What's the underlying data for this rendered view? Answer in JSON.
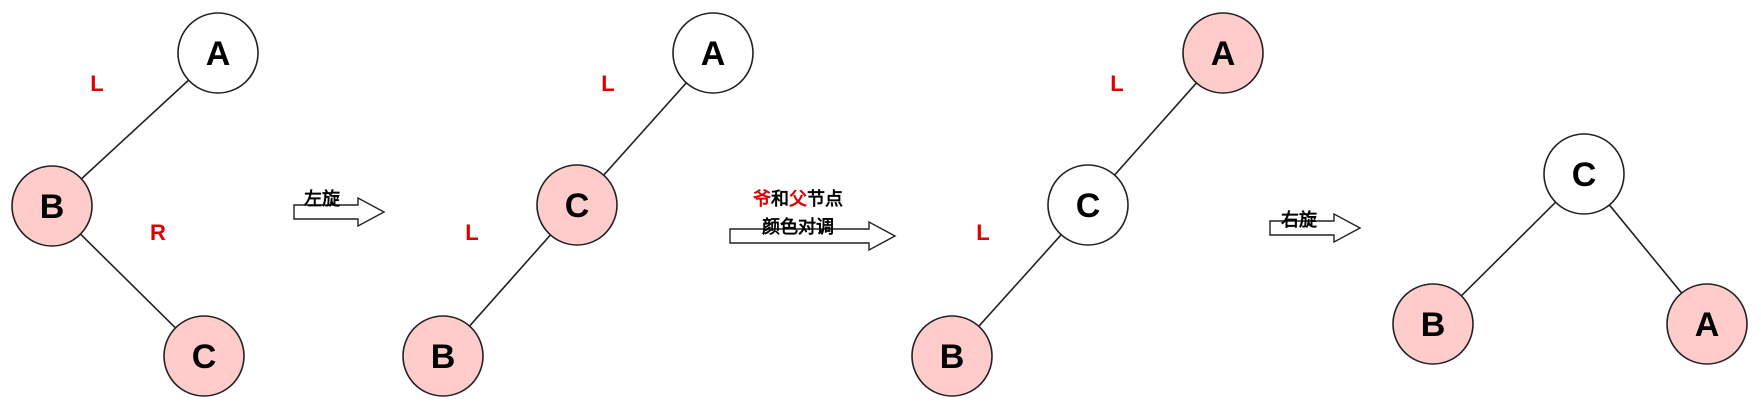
{
  "colors": {
    "red_node": "#ffcccc",
    "black_node": "#ffffff",
    "stroke": "#222222",
    "edge_label": "#e00000"
  },
  "stages": [
    {
      "nodes": [
        {
          "id": "A",
          "label": "A",
          "color": "black"
        },
        {
          "id": "B",
          "label": "B",
          "color": "red"
        },
        {
          "id": "C",
          "label": "C",
          "color": "red"
        }
      ],
      "edges": [
        {
          "from": "A",
          "to": "B",
          "label": "L"
        },
        {
          "from": "B",
          "to": "C",
          "label": "R"
        }
      ]
    },
    {
      "nodes": [
        {
          "id": "A",
          "label": "A",
          "color": "black"
        },
        {
          "id": "C",
          "label": "C",
          "color": "red"
        },
        {
          "id": "B",
          "label": "B",
          "color": "red"
        }
      ],
      "edges": [
        {
          "from": "A",
          "to": "C",
          "label": "L"
        },
        {
          "from": "C",
          "to": "B",
          "label": "L"
        }
      ]
    },
    {
      "nodes": [
        {
          "id": "A",
          "label": "A",
          "color": "red"
        },
        {
          "id": "C",
          "label": "C",
          "color": "black"
        },
        {
          "id": "B",
          "label": "B",
          "color": "red"
        }
      ],
      "edges": [
        {
          "from": "A",
          "to": "C",
          "label": "L"
        },
        {
          "from": "C",
          "to": "B",
          "label": "L"
        }
      ]
    },
    {
      "nodes": [
        {
          "id": "C",
          "label": "C",
          "color": "black"
        },
        {
          "id": "B",
          "label": "B",
          "color": "red"
        },
        {
          "id": "A",
          "label": "A",
          "color": "red"
        }
      ],
      "edges": [
        {
          "from": "C",
          "to": "B",
          "label": ""
        },
        {
          "from": "C",
          "to": "A",
          "label": ""
        }
      ]
    }
  ],
  "arrows": [
    {
      "lines": [
        [
          {
            "text": "左旋",
            "accent": false
          }
        ]
      ]
    },
    {
      "lines": [
        [
          {
            "text": "爷",
            "accent": true
          },
          {
            "text": "和",
            "accent": false
          },
          {
            "text": "父",
            "accent": true
          },
          {
            "text": "节点",
            "accent": false
          }
        ],
        [
          {
            "text": "颜色对调",
            "accent": false
          }
        ]
      ]
    },
    {
      "lines": [
        [
          {
            "text": "右旋",
            "accent": false
          }
        ]
      ]
    }
  ]
}
